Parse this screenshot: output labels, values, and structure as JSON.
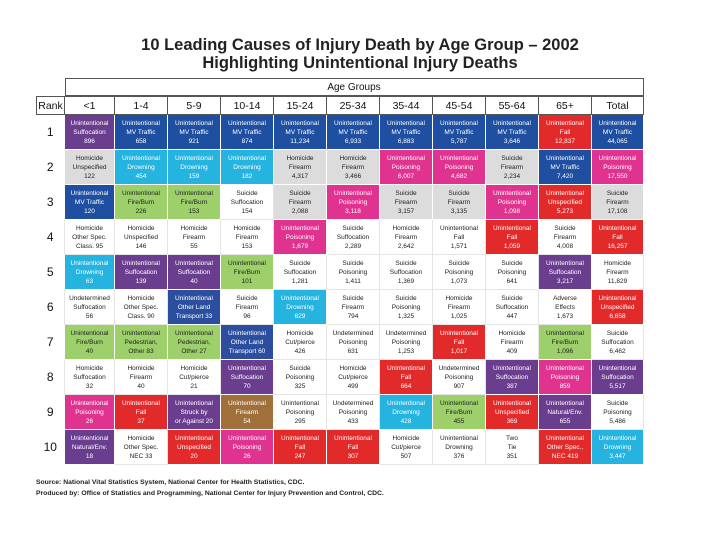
{
  "title": "10 Leading Causes of Injury Death by Age Group – 2002",
  "subtitle": "Highlighting Unintentional Injury Deaths",
  "age_groups_label": "Age Groups",
  "columns": [
    "Rank",
    "<1",
    "1-4",
    "5-9",
    "10-14",
    "15-24",
    "25-34",
    "35-44",
    "45-54",
    "55-64",
    "65+",
    "Total"
  ],
  "colors": {
    "purple": "#6a3d8f",
    "blue": "#1f4fa0",
    "grey": "#dcdcdc",
    "white": "#ffffff",
    "pink": "#e0338f",
    "green": "#9dd06a",
    "red": "#e32a2a",
    "cyan": "#25b3e0",
    "brown": "#a0703a",
    "orange": "#ee8a2a",
    "navy": "#2b4f9e"
  },
  "rows": [
    {
      "rank": "1",
      "cells": [
        {
          "lines": [
            "Unintentional",
            "Suffocation",
            "896"
          ],
          "c": "purple"
        },
        {
          "lines": [
            "Unintentional",
            "MV Traffic",
            "658"
          ],
          "c": "blue"
        },
        {
          "lines": [
            "Unintentional",
            "MV Traffic",
            "921"
          ],
          "c": "blue"
        },
        {
          "lines": [
            "Unintentional",
            "MV Traffic",
            "874"
          ],
          "c": "blue"
        },
        {
          "lines": [
            "Unintentional",
            "MV Traffic",
            "11,234"
          ],
          "c": "blue"
        },
        {
          "lines": [
            "Unintentional",
            "MV Traffic",
            "6,933"
          ],
          "c": "blue"
        },
        {
          "lines": [
            "Unintentional",
            "MV Traffic",
            "6,883"
          ],
          "c": "blue"
        },
        {
          "lines": [
            "Unintentional",
            "MV Traffic",
            "5,787"
          ],
          "c": "blue"
        },
        {
          "lines": [
            "Unintentional",
            "MV Traffic",
            "3,646"
          ],
          "c": "blue"
        },
        {
          "lines": [
            "Unintentional",
            "Fall",
            "12,837"
          ],
          "c": "red"
        },
        {
          "lines": [
            "Unintentional",
            "MV Traffic",
            "44,065"
          ],
          "c": "blue"
        }
      ]
    },
    {
      "rank": "2",
      "cells": [
        {
          "lines": [
            "Homicide",
            "Unspecified",
            "122"
          ],
          "c": "grey"
        },
        {
          "lines": [
            "Unintentional",
            "Drowning",
            "454"
          ],
          "c": "cyan"
        },
        {
          "lines": [
            "Unintentional",
            "Drowning",
            "159"
          ],
          "c": "cyan"
        },
        {
          "lines": [
            "Unintentional",
            "Drowning",
            "182"
          ],
          "c": "cyan"
        },
        {
          "lines": [
            "Homicide",
            "Firearm",
            "4,317"
          ],
          "c": "grey"
        },
        {
          "lines": [
            "Homicide",
            "Firearm",
            "3,466"
          ],
          "c": "grey"
        },
        {
          "lines": [
            "Unintentional",
            "Poisoning",
            "6,007"
          ],
          "c": "pink"
        },
        {
          "lines": [
            "Unintentional",
            "Poisoning",
            "4,682"
          ],
          "c": "pink"
        },
        {
          "lines": [
            "Suicide",
            "Firearm",
            "2,234"
          ],
          "c": "grey"
        },
        {
          "lines": [
            "Unintentional",
            "MV Traffic",
            "7,420"
          ],
          "c": "blue"
        },
        {
          "lines": [
            "Unintentional",
            "Poisoning",
            "17,550"
          ],
          "c": "pink"
        }
      ]
    },
    {
      "rank": "3",
      "cells": [
        {
          "lines": [
            "Unintentional",
            "MV Traffic",
            "120"
          ],
          "c": "blue"
        },
        {
          "lines": [
            "Unintentional",
            "Fire/Burn",
            "226"
          ],
          "c": "green"
        },
        {
          "lines": [
            "Unintentional",
            "Fire/Burn",
            "153"
          ],
          "c": "green"
        },
        {
          "lines": [
            "Suicide",
            "Suffocation",
            "154"
          ],
          "c": "white"
        },
        {
          "lines": [
            "Suicide",
            "Firearm",
            "2,088"
          ],
          "c": "grey"
        },
        {
          "lines": [
            "Unintentional",
            "Poisoning",
            "3,118"
          ],
          "c": "pink"
        },
        {
          "lines": [
            "Suicide",
            "Firearm",
            "3,157"
          ],
          "c": "grey"
        },
        {
          "lines": [
            "Suicide",
            "Firearm",
            "3,135"
          ],
          "c": "grey"
        },
        {
          "lines": [
            "Unintentional",
            "Poisoning",
            "1,098"
          ],
          "c": "pink"
        },
        {
          "lines": [
            "Unintentional",
            "Unspecified",
            "5,273"
          ],
          "c": "red"
        },
        {
          "lines": [
            "Suicide",
            "Firearm",
            "17,108"
          ],
          "c": "grey"
        }
      ]
    },
    {
      "rank": "4",
      "cells": [
        {
          "lines": [
            "Homicide",
            "Other Spec.",
            "Class. 95"
          ],
          "c": "white"
        },
        {
          "lines": [
            "Homicide",
            "Unspecified",
            "146"
          ],
          "c": "white"
        },
        {
          "lines": [
            "Homicide",
            "Firearm",
            "55"
          ],
          "c": "white"
        },
        {
          "lines": [
            "Homicide",
            "Firearm",
            "153"
          ],
          "c": "white"
        },
        {
          "lines": [
            "Unintentional",
            "Poisoning",
            "1,679"
          ],
          "c": "pink"
        },
        {
          "lines": [
            "Suicide",
            "Suffocation",
            "2,289"
          ],
          "c": "white"
        },
        {
          "lines": [
            "Homicide",
            "Firearm",
            "2,642"
          ],
          "c": "white"
        },
        {
          "lines": [
            "Unintentional",
            "Fall",
            "1,571"
          ],
          "c": "white"
        },
        {
          "lines": [
            "Unintentional",
            "Fall",
            "1,059"
          ],
          "c": "red"
        },
        {
          "lines": [
            "Suicide",
            "Firearm",
            "4,008"
          ],
          "c": "white"
        },
        {
          "lines": [
            "Unintentional",
            "Fall",
            "16,257"
          ],
          "c": "red"
        }
      ]
    },
    {
      "rank": "5",
      "cells": [
        {
          "lines": [
            "Unintentional",
            "Drowning",
            "63"
          ],
          "c": "cyan"
        },
        {
          "lines": [
            "Unintentional",
            "Suffocation",
            "139"
          ],
          "c": "purple"
        },
        {
          "lines": [
            "Unintentional",
            "Suffocation",
            "40"
          ],
          "c": "purple"
        },
        {
          "lines": [
            "Unintentional",
            "Fire/Burn",
            "101"
          ],
          "c": "green"
        },
        {
          "lines": [
            "Suicide",
            "Suffocation",
            "1,281"
          ],
          "c": "white"
        },
        {
          "lines": [
            "Suicide",
            "Poisoning",
            "1,411"
          ],
          "c": "white"
        },
        {
          "lines": [
            "Suicide",
            "Suffocation",
            "1,369"
          ],
          "c": "white"
        },
        {
          "lines": [
            "Suicide",
            "Poisoning",
            "1,073"
          ],
          "c": "white"
        },
        {
          "lines": [
            "Suicide",
            "Poisoning",
            "641"
          ],
          "c": "white"
        },
        {
          "lines": [
            "Unintentional",
            "Suffocation",
            "3,217"
          ],
          "c": "purple"
        },
        {
          "lines": [
            "Homicide",
            "Firearm",
            "11,829"
          ],
          "c": "white"
        }
      ]
    },
    {
      "rank": "6",
      "cells": [
        {
          "lines": [
            "Undetermined",
            "Suffocation",
            "56"
          ],
          "c": "white"
        },
        {
          "lines": [
            "Homicide",
            "Other Spec.",
            "Class. 90"
          ],
          "c": "white"
        },
        {
          "lines": [
            "Unintentional",
            "Other Land",
            "Transport 33"
          ],
          "c": "navy"
        },
        {
          "lines": [
            "Suicide",
            "Firearm",
            "96"
          ],
          "c": "white"
        },
        {
          "lines": [
            "Unintentional",
            "Drowning",
            "629"
          ],
          "c": "cyan"
        },
        {
          "lines": [
            "Suicide",
            "Firearm",
            "794"
          ],
          "c": "white"
        },
        {
          "lines": [
            "Suicide",
            "Poisoning",
            "1,325"
          ],
          "c": "white"
        },
        {
          "lines": [
            "Homicide",
            "Firearm",
            "1,025"
          ],
          "c": "white"
        },
        {
          "lines": [
            "Suicide",
            "Suffocation",
            "447"
          ],
          "c": "white"
        },
        {
          "lines": [
            "Adverse",
            "Effects",
            "1,673"
          ],
          "c": "white"
        },
        {
          "lines": [
            "Unintentional",
            "Unspecified",
            "6,658"
          ],
          "c": "red"
        }
      ]
    },
    {
      "rank": "7",
      "cells": [
        {
          "lines": [
            "Unintentional",
            "Fire/Burn",
            "40"
          ],
          "c": "green"
        },
        {
          "lines": [
            "Unintentional",
            "Pedestrian,",
            "Other 83"
          ],
          "c": "green"
        },
        {
          "lines": [
            "Unintentional",
            "Pedestrian,",
            "Other 27"
          ],
          "c": "green"
        },
        {
          "lines": [
            "Unintentional",
            "Other Land",
            "Transport 60"
          ],
          "c": "navy"
        },
        {
          "lines": [
            "Homicide",
            "Cut/pierce",
            "426"
          ],
          "c": "white"
        },
        {
          "lines": [
            "Undetermined",
            "Poisoning",
            "631"
          ],
          "c": "white"
        },
        {
          "lines": [
            "Undetermined",
            "Poisoning",
            "1,253"
          ],
          "c": "white"
        },
        {
          "lines": [
            "Unintentional",
            "Fall",
            "1,017"
          ],
          "c": "red"
        },
        {
          "lines": [
            "Homicide",
            "Firearm",
            "409"
          ],
          "c": "white"
        },
        {
          "lines": [
            "Unintentional",
            "Fire/Burn",
            "1,096"
          ],
          "c": "green"
        },
        {
          "lines": [
            "Suicide",
            "Suffocation",
            "6,462"
          ],
          "c": "white"
        }
      ]
    },
    {
      "rank": "8",
      "cells": [
        {
          "lines": [
            "Homicide",
            "Suffocation",
            "32"
          ],
          "c": "white"
        },
        {
          "lines": [
            "Homicide",
            "Firearm",
            "40"
          ],
          "c": "white"
        },
        {
          "lines": [
            "Homicide",
            "Cut/pierce",
            "21"
          ],
          "c": "white"
        },
        {
          "lines": [
            "Unintentional",
            "Suffocation",
            "70"
          ],
          "c": "purple"
        },
        {
          "lines": [
            "Suicide",
            "Poisoning",
            "325"
          ],
          "c": "white"
        },
        {
          "lines": [
            "Homicide",
            "Cut/pierce",
            "499"
          ],
          "c": "white"
        },
        {
          "lines": [
            "Unintentional",
            "Fall",
            "664"
          ],
          "c": "red"
        },
        {
          "lines": [
            "Undetermined",
            "Poisoning",
            "907"
          ],
          "c": "white"
        },
        {
          "lines": [
            "Unintentional",
            "Suffocation",
            "387"
          ],
          "c": "purple"
        },
        {
          "lines": [
            "Unintentional",
            "Poisoning",
            "859"
          ],
          "c": "pink"
        },
        {
          "lines": [
            "Unintentional",
            "Suffocation",
            "5,517"
          ],
          "c": "purple"
        }
      ]
    },
    {
      "rank": "9",
      "cells": [
        {
          "lines": [
            "Unintentional",
            "Poisoning",
            "26"
          ],
          "c": "pink"
        },
        {
          "lines": [
            "Unintentional",
            "Fall",
            "37"
          ],
          "c": "red"
        },
        {
          "lines": [
            "Unintentional",
            "Struck by",
            "or Against 20"
          ],
          "c": "purple"
        },
        {
          "lines": [
            "Unintentional",
            "Firearm",
            "54"
          ],
          "c": "brown"
        },
        {
          "lines": [
            "Unintentional",
            "Poisoning",
            "295"
          ],
          "c": "white"
        },
        {
          "lines": [
            "Undetermined",
            "Poisoning",
            "433"
          ],
          "c": "white"
        },
        {
          "lines": [
            "Unintentional",
            "Drowning",
            "428"
          ],
          "c": "cyan"
        },
        {
          "lines": [
            "Unintentional",
            "Fire/Burn",
            "455"
          ],
          "c": "green"
        },
        {
          "lines": [
            "Unintentional",
            "Unspecified",
            "369"
          ],
          "c": "red"
        },
        {
          "lines": [
            "Unintentional",
            "Natural/Env.",
            "655"
          ],
          "c": "purple"
        },
        {
          "lines": [
            "Suicide",
            "Poisoning",
            "5,486"
          ],
          "c": "white"
        }
      ]
    },
    {
      "rank": "10",
      "cells": [
        {
          "lines": [
            "Unintentional",
            "Natural/Env.",
            "18"
          ],
          "c": "purple"
        },
        {
          "lines": [
            "Homicide",
            "Other Spec.",
            "NEC 33"
          ],
          "c": "white"
        },
        {
          "lines": [
            "Unintentional",
            "Unspecified",
            "20"
          ],
          "c": "red"
        },
        {
          "lines": [
            "Unintentional",
            "Poisoning",
            "26"
          ],
          "c": "pink"
        },
        {
          "lines": [
            "Unintentional",
            "Fall",
            "247"
          ],
          "c": "red"
        },
        {
          "lines": [
            "Unintentional",
            "Fall",
            "307"
          ],
          "c": "red"
        },
        {
          "lines": [
            "Homicide",
            "Cut/pierce",
            "507"
          ],
          "c": "white"
        },
        {
          "lines": [
            "Unintentional",
            "Drowning",
            "376"
          ],
          "c": "white"
        },
        {
          "lines": [
            "Two",
            "Tie",
            "351"
          ],
          "c": "white"
        },
        {
          "lines": [
            "Unintentional",
            "Other Spec.,",
            "NEC 419"
          ],
          "c": "red"
        },
        {
          "lines": [
            "Unintentional",
            "Drowning",
            "3,447"
          ],
          "c": "cyan"
        }
      ]
    }
  ],
  "source_line": "Source: National Vital Statistics System, National Center for Health Statistics, CDC.",
  "produced_line": "Produced by: Office of Statistics and Programming, National Center for Injury Prevention and Control, CDC."
}
